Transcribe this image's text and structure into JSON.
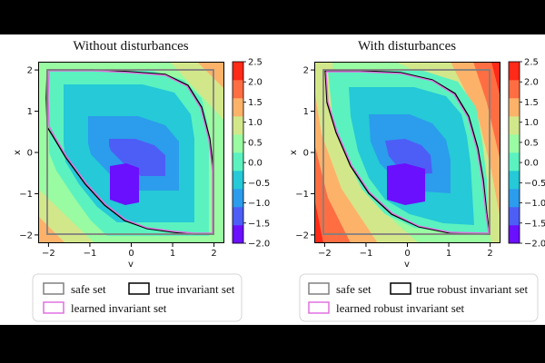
{
  "chart_data": [
    {
      "type": "contourf",
      "title": "Without disturbances",
      "xlabel": "v",
      "ylabel": "x",
      "xlim": [
        -2.25,
        2.25
      ],
      "ylim": [
        -2.2,
        2.2
      ],
      "xticks": [
        "-2",
        "-1",
        "0",
        "1",
        "2"
      ],
      "yticks": [
        "2",
        "1",
        "0",
        "-1",
        "-2"
      ],
      "colorbar": {
        "levels": [
          -2.0,
          -1.5,
          -1.0,
          -0.5,
          0.0,
          0.5,
          1.0,
          1.5,
          2.0,
          2.5
        ],
        "tick_labels": [
          "2.5",
          "2.0",
          "1.5",
          "1.0",
          "0.5",
          "0.0",
          "−0.5",
          "−1.0",
          "−1.5",
          "−2.0"
        ],
        "colors": [
          "#6b0fff",
          "#4d5ef7",
          "#2c9cec",
          "#25c9d7",
          "#5bf2c0",
          "#99fba2",
          "#d2e78a",
          "#fdb26a",
          "#ff6e42",
          "#ff2a17"
        ]
      },
      "sets": [
        "safe set",
        "true invariant set",
        "learned invariant set"
      ]
    },
    {
      "type": "contourf",
      "title": "With disturbances",
      "xlabel": "v",
      "ylabel": "x",
      "xlim": [
        -2.25,
        2.25
      ],
      "ylim": [
        -2.2,
        2.2
      ],
      "xticks": [
        "-2",
        "-1",
        "0",
        "1",
        "2"
      ],
      "yticks": [
        "2",
        "1",
        "0",
        "-1",
        "-2"
      ],
      "colorbar": {
        "levels": [
          -2.0,
          -1.5,
          -1.0,
          -0.5,
          0.0,
          0.5,
          1.0,
          1.5,
          2.0,
          2.5
        ],
        "tick_labels": [
          "2.5",
          "2.0",
          "1.5",
          "1.0",
          "0.5",
          "0.0",
          "−0.5",
          "−1.0",
          "−1.5",
          "−2.0"
        ],
        "colors": [
          "#6b0fff",
          "#4d5ef7",
          "#2c9cec",
          "#25c9d7",
          "#5bf2c0",
          "#99fba2",
          "#d2e78a",
          "#fdb26a",
          "#ff6e42",
          "#ff2a17"
        ]
      },
      "sets": [
        "safe set",
        "true robust invariant set",
        "learned robust invariant set"
      ]
    }
  ],
  "legends": [
    {
      "safe": {
        "label": "safe set",
        "color": "#808080"
      },
      "true": {
        "label": "true invariant set",
        "color": "#000000"
      },
      "learned": {
        "label": "learned invariant set",
        "color": "#e070e0"
      }
    },
    {
      "safe": {
        "label": "safe set",
        "color": "#808080"
      },
      "true": {
        "label": "true robust invariant set",
        "color": "#000000"
      },
      "learned": {
        "label": "learned robust invariant set",
        "color": "#e070e0"
      }
    }
  ]
}
